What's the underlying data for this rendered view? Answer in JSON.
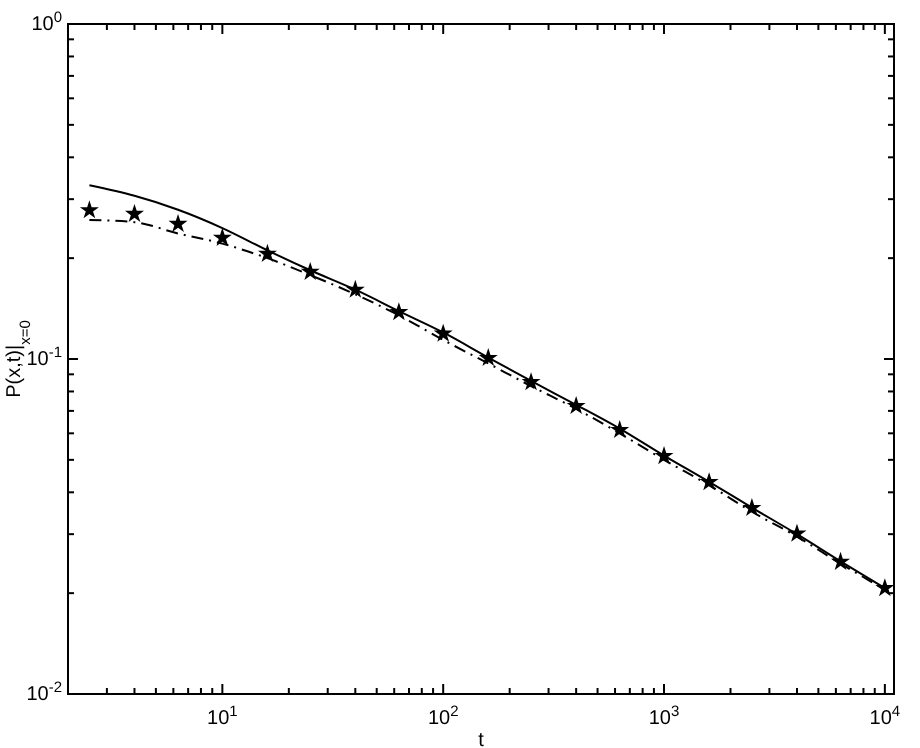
{
  "chart_data": {
    "type": "line",
    "xlabel": "t",
    "ylabel": "P(x,t)|$_{x=0}$",
    "log": "xy",
    "grid": false,
    "xlim": [
      2,
      11000
    ],
    "ylim": [
      0.01,
      1
    ],
    "xticks": [
      {
        "value": 2,
        "label": null
      },
      {
        "value": 3,
        "label": null
      },
      {
        "value": 4,
        "label": null
      },
      {
        "value": 5,
        "label": null
      },
      {
        "value": 6,
        "label": null
      },
      {
        "value": 7,
        "label": null
      },
      {
        "value": 8,
        "label": null
      },
      {
        "value": 9,
        "label": null
      },
      {
        "value": 10,
        "label": "10$^{1}$"
      },
      {
        "value": 20,
        "label": null
      },
      {
        "value": 30,
        "label": null
      },
      {
        "value": 40,
        "label": null
      },
      {
        "value": 50,
        "label": null
      },
      {
        "value": 60,
        "label": null
      },
      {
        "value": 70,
        "label": null
      },
      {
        "value": 80,
        "label": null
      },
      {
        "value": 90,
        "label": null
      },
      {
        "value": 100,
        "label": "10$^{2}$"
      },
      {
        "value": 200,
        "label": null
      },
      {
        "value": 300,
        "label": null
      },
      {
        "value": 400,
        "label": null
      },
      {
        "value": 500,
        "label": null
      },
      {
        "value": 600,
        "label": null
      },
      {
        "value": 700,
        "label": null
      },
      {
        "value": 800,
        "label": null
      },
      {
        "value": 900,
        "label": null
      },
      {
        "value": 1000,
        "label": "10$^{3}$"
      },
      {
        "value": 2000,
        "label": null
      },
      {
        "value": 3000,
        "label": null
      },
      {
        "value": 4000,
        "label": null
      },
      {
        "value": 5000,
        "label": null
      },
      {
        "value": 6000,
        "label": null
      },
      {
        "value": 7000,
        "label": null
      },
      {
        "value": 8000,
        "label": null
      },
      {
        "value": 9000,
        "label": null
      },
      {
        "value": 10000,
        "label": "10$^{4}$"
      }
    ],
    "yticks": [
      {
        "value": 0.01,
        "label": "10$^{-2}$"
      },
      {
        "value": 0.02,
        "label": null
      },
      {
        "value": 0.03,
        "label": null
      },
      {
        "value": 0.04,
        "label": null
      },
      {
        "value": 0.05,
        "label": null
      },
      {
        "value": 0.06,
        "label": null
      },
      {
        "value": 0.07,
        "label": null
      },
      {
        "value": 0.08,
        "label": null
      },
      {
        "value": 0.09,
        "label": null
      },
      {
        "value": 0.1,
        "label": "10$^{-1}$"
      },
      {
        "value": 0.2,
        "label": null
      },
      {
        "value": 0.3,
        "label": null
      },
      {
        "value": 0.4,
        "label": null
      },
      {
        "value": 0.5,
        "label": null
      },
      {
        "value": 0.6,
        "label": null
      },
      {
        "value": 0.7,
        "label": null
      },
      {
        "value": 0.8,
        "label": null
      },
      {
        "value": 0.9,
        "label": null
      },
      {
        "value": 1,
        "label": "10$^{0}$"
      }
    ],
    "x": [
      2.5,
      4,
      6.3,
      10,
      16,
      25,
      40,
      63,
      100,
      160,
      250,
      400,
      630,
      1000,
      1600,
      2500,
      4000,
      6300,
      10000
    ],
    "series": [
      {
        "color": "#000000",
        "line_style": "solid",
        "marker": "none",
        "values": [
          0.33,
          0.307,
          0.279,
          0.246,
          0.211,
          0.184,
          0.161,
          0.139,
          0.12,
          0.101,
          0.086,
          0.073,
          0.062,
          0.0515,
          0.043,
          0.036,
          0.03,
          0.0249,
          0.0207
        ]
      },
      {
        "color": "#000000",
        "line_style": "dashed",
        "marker": "none",
        "values": [
          0.26,
          0.256,
          0.237,
          0.221,
          0.2,
          0.178,
          0.156,
          0.135,
          0.114,
          0.097,
          0.083,
          0.071,
          0.06,
          0.05,
          0.042,
          0.035,
          0.0295,
          0.0245,
          0.0205
        ]
      },
      {
        "type": "scatter",
        "color": "#000000",
        "marker": "star",
        "values": [
          0.278,
          0.271,
          0.253,
          0.23,
          0.206,
          0.182,
          0.161,
          0.138,
          0.119,
          0.1007,
          0.0853,
          0.0724,
          0.0614,
          0.0513,
          0.0429,
          0.0359,
          0.0301,
          0.0248,
          0.0207
        ]
      }
    ]
  }
}
